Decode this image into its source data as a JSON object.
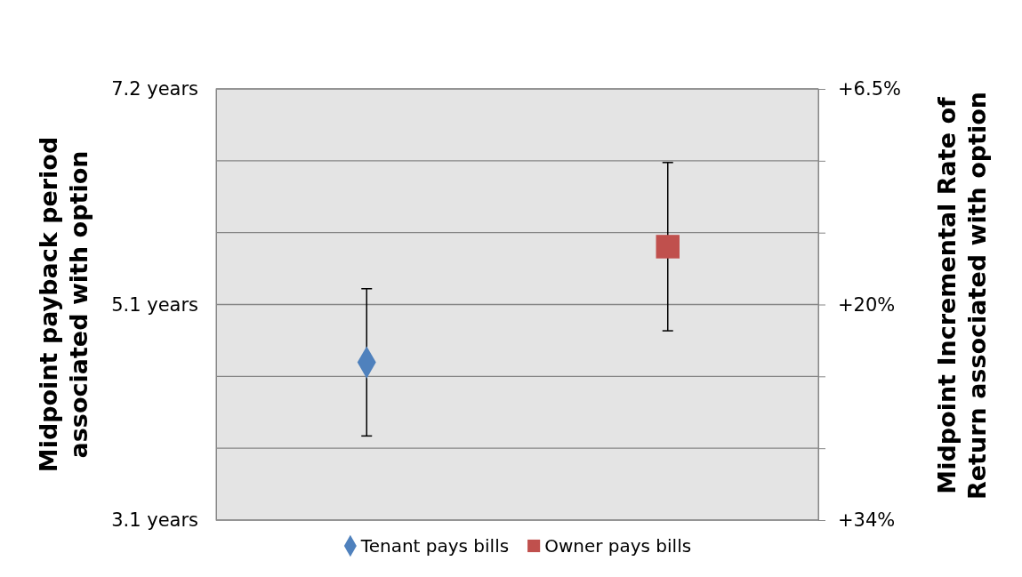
{
  "chart_data": {
    "type": "scatter",
    "categories": [
      null,
      null
    ],
    "ylabel": "Midpoint payback period associated with option",
    "y2label": "Midpoint Incremental Rate of Return associated with option",
    "ylim": [
      3.1,
      7.2
    ],
    "yticks": [
      {
        "value": 3.1,
        "label": "3.1 years"
      },
      {
        "value": 5.15,
        "label": "5.1 years"
      },
      {
        "value": 7.2,
        "label": "7.2 years"
      }
    ],
    "y2lim": [
      34,
      6.5
    ],
    "y2ticks": [
      {
        "value": 34,
        "label": "+34%"
      },
      {
        "value": 29.417,
        "label": null
      },
      {
        "value": 24.833,
        "label": null
      },
      {
        "value": 20.25,
        "label": "+20%"
      },
      {
        "value": 15.667,
        "label": null
      },
      {
        "value": 11.083,
        "label": null
      },
      {
        "value": 6.5,
        "label": "+6.5%"
      }
    ],
    "grid": "y2",
    "legend": "bottom",
    "series": [
      {
        "name": "Tenant pays bills",
        "color": "#4f81bd",
        "marker": "diamond",
        "values": [
          4.6,
          null
        ],
        "errors": [
          [
            3.9,
            5.3
          ],
          null
        ]
      },
      {
        "name": "Owner pays bills",
        "color": "#c0504d",
        "marker": "square",
        "values": [
          null,
          5.7
        ],
        "errors": [
          null,
          [
            4.9,
            6.5
          ]
        ]
      }
    ]
  }
}
